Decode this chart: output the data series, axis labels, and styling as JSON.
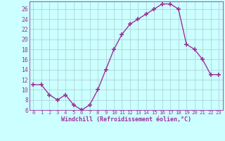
{
  "x": [
    0,
    1,
    2,
    3,
    4,
    5,
    6,
    7,
    8,
    9,
    10,
    11,
    12,
    13,
    14,
    15,
    16,
    17,
    18,
    19,
    20,
    21,
    22,
    23
  ],
  "y": [
    11,
    11,
    9,
    8,
    9,
    7,
    6,
    7,
    10,
    14,
    18,
    21,
    23,
    24,
    25,
    26,
    27,
    27,
    26,
    19,
    18,
    16,
    13,
    13
  ],
  "line_color": "#993399",
  "marker_color": "#993399",
  "bg_color": "#ccffff",
  "grid_color": "#aacccc",
  "xlabel": "Windchill (Refroidissement éolien,°C)",
  "xlabel_color": "#993399",
  "tick_color": "#993399",
  "spine_color": "#993399",
  "ylim": [
    6,
    27.5
  ],
  "yticks": [
    6,
    8,
    10,
    12,
    14,
    16,
    18,
    20,
    22,
    24,
    26
  ],
  "xlim": [
    -0.5,
    23.5
  ]
}
